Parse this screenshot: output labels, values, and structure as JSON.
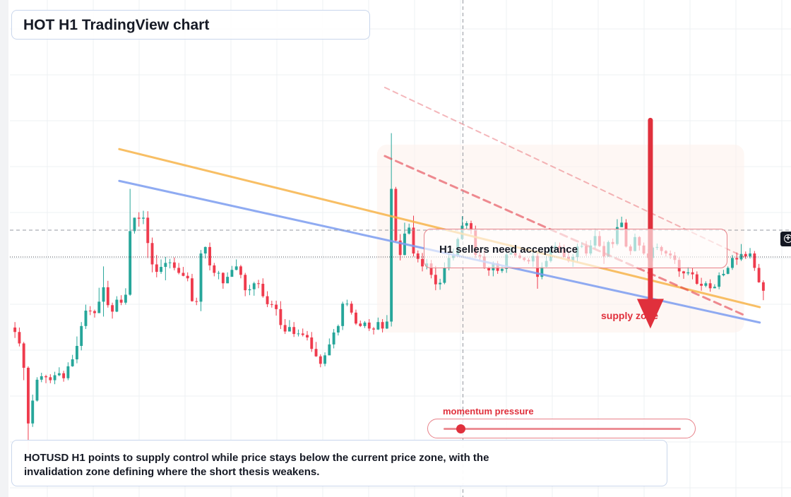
{
  "title": "HOT H1 TradingView chart",
  "callout": "H1 sellers need acceptance",
  "supply_label": "supply zone",
  "momentum": {
    "label": "momentum pressure",
    "level": 0.07
  },
  "note": "HOTUSD H1 points to supply control while price stays below the current price zone, with the invalidation zone defining where the short thesis weakens.",
  "colors": {
    "up": "#26a69a",
    "down": "#ef3b4d",
    "trend_orange": "#f7b44a",
    "trend_blue": "#7b9cf0",
    "resistance": "#e0303c",
    "arrow": "#e0303c"
  },
  "icons": {
    "crosshair": "crosshair-icon"
  },
  "chart_data": {
    "type": "candlestick",
    "y_scale": "relative price (0 = bottom, 100 = top)",
    "ylim": [
      0,
      100
    ],
    "grid": true,
    "candles": [
      [
        34.1,
        33.2,
        35.2,
        32.0
      ],
      [
        33.2,
        30.9,
        34.1,
        30.3
      ],
      [
        30.9,
        26.0,
        31.2,
        23.5
      ],
      [
        26.0,
        14.8,
        26.3,
        4.9
      ],
      [
        14.8,
        19.4,
        20.6,
        14.1
      ],
      [
        19.4,
        23.6,
        24.1,
        19.2
      ],
      [
        23.6,
        24.3,
        25.0,
        23.1
      ],
      [
        24.3,
        24.1,
        24.6,
        22.9
      ],
      [
        24.1,
        23.5,
        24.7,
        22.9
      ],
      [
        23.5,
        24.5,
        25.2,
        22.7
      ],
      [
        24.5,
        24.9,
        26.1,
        24.3
      ],
      [
        24.9,
        23.9,
        25.4,
        23.2
      ],
      [
        23.9,
        26.3,
        27.1,
        23.5
      ],
      [
        26.3,
        27.7,
        28.6,
        26.2
      ],
      [
        27.7,
        30.4,
        32.3,
        26.9
      ],
      [
        30.4,
        34.4,
        35.2,
        29.5
      ],
      [
        34.4,
        37.5,
        38.7,
        33.8
      ],
      [
        37.5,
        37.4,
        38.4,
        36.6
      ],
      [
        37.4,
        37.0,
        37.7,
        36.1
      ],
      [
        37.0,
        39.3,
        42.1,
        37.0
      ],
      [
        39.3,
        42.2,
        46.4,
        36.3
      ],
      [
        42.2,
        38.6,
        43.5,
        38.1
      ],
      [
        38.6,
        37.3,
        39.1,
        35.9
      ],
      [
        37.3,
        39.7,
        40.4,
        37.2
      ],
      [
        39.7,
        39.1,
        40.6,
        38.6
      ],
      [
        39.1,
        40.7,
        42.0,
        38.7
      ],
      [
        40.7,
        53.5,
        62.0,
        40.5
      ],
      [
        53.5,
        56.2,
        56.2,
        53.0
      ],
      [
        56.2,
        56.0,
        57.3,
        54.4
      ],
      [
        56.0,
        56.2,
        57.6,
        54.9
      ],
      [
        56.2,
        51.1,
        57.5,
        48.1
      ],
      [
        51.1,
        46.8,
        52.2,
        45.2
      ],
      [
        46.8,
        45.3,
        48.7,
        44.2
      ],
      [
        45.3,
        46.3,
        47.8,
        44.9
      ],
      [
        46.3,
        47.1,
        48.3,
        43.6
      ],
      [
        47.1,
        47.2,
        47.9,
        46.0
      ],
      [
        47.2,
        46.1,
        48.2,
        45.6
      ],
      [
        46.1,
        45.1,
        47.1,
        44.8
      ],
      [
        45.1,
        44.5,
        46.3,
        44.4
      ],
      [
        44.5,
        44.0,
        45.2,
        43.4
      ],
      [
        44.0,
        39.4,
        44.9,
        39.3
      ],
      [
        39.4,
        39.3,
        40.1,
        38.6
      ],
      [
        39.3,
        49.0,
        49.7,
        37.4
      ],
      [
        49.0,
        50.3,
        50.4,
        48.0
      ],
      [
        50.3,
        46.6,
        51.2,
        45.6
      ],
      [
        46.6,
        45.1,
        47.1,
        44.4
      ],
      [
        45.1,
        45.1,
        45.5,
        43.8
      ],
      [
        45.1,
        43.0,
        45.2,
        41.9
      ],
      [
        43.0,
        44.3,
        45.2,
        43.0
      ],
      [
        44.3,
        45.7,
        46.5,
        44.4
      ],
      [
        45.7,
        46.4,
        47.8,
        45.6
      ],
      [
        46.4,
        44.7,
        46.7,
        44.0
      ],
      [
        44.7,
        41.6,
        45.1,
        40.4
      ],
      [
        41.6,
        41.8,
        42.7,
        40.6
      ],
      [
        41.8,
        43.0,
        43.3,
        40.5
      ],
      [
        43.0,
        42.9,
        43.7,
        42.0
      ],
      [
        42.9,
        40.4,
        44.0,
        40.1
      ],
      [
        40.4,
        38.8,
        41.4,
        38.2
      ],
      [
        38.8,
        38.7,
        39.5,
        38.1
      ],
      [
        38.7,
        37.8,
        39.5,
        36.5
      ],
      [
        37.8,
        34.6,
        39.4,
        33.8
      ],
      [
        34.6,
        33.3,
        35.8,
        32.8
      ],
      [
        33.3,
        34.2,
        35.6,
        33.5
      ],
      [
        34.2,
        32.8,
        35.2,
        32.2
      ],
      [
        32.8,
        32.9,
        33.7,
        32.3
      ],
      [
        32.9,
        32.6,
        33.9,
        32.3
      ],
      [
        32.6,
        32.1,
        33.4,
        31.5
      ],
      [
        32.1,
        29.8,
        33.2,
        29.2
      ],
      [
        29.8,
        28.3,
        31.2,
        28.2
      ],
      [
        28.3,
        26.8,
        28.7,
        26.1
      ],
      [
        26.8,
        28.5,
        29.1,
        26.3
      ],
      [
        28.5,
        30.7,
        31.9,
        28.6
      ],
      [
        30.7,
        33.1,
        33.8,
        29.9
      ],
      [
        33.1,
        34.4,
        34.7,
        32.5
      ],
      [
        34.4,
        38.9,
        39.3,
        33.6
      ],
      [
        38.9,
        38.9,
        39.7,
        38.4
      ],
      [
        38.9,
        37.1,
        39.4,
        36.7
      ],
      [
        37.1,
        34.9,
        37.7,
        34.6
      ],
      [
        34.9,
        34.4,
        35.5,
        34.2
      ],
      [
        34.4,
        35.1,
        35.4,
        34.0
      ],
      [
        35.1,
        33.9,
        35.8,
        33.4
      ],
      [
        33.9,
        33.7,
        34.2,
        32.7
      ],
      [
        33.7,
        35.2,
        36.1,
        33.6
      ],
      [
        35.2,
        33.9,
        35.8,
        33.1
      ],
      [
        33.9,
        35.3,
        36.6,
        33.8
      ],
      [
        35.3,
        62.0,
        73.2,
        34.3
      ],
      [
        62.0,
        51.6,
        62.4,
        51.3
      ],
      [
        51.6,
        48.7,
        52.9,
        47.6
      ],
      [
        48.7,
        53.0,
        55.2,
        48.6
      ],
      [
        53.0,
        54.2,
        55.0,
        52.8
      ],
      [
        54.2,
        49.0,
        56.6,
        48.4
      ],
      [
        49.0,
        47.9,
        49.6,
        47.2
      ],
      [
        47.9,
        46.4,
        49.1,
        45.4
      ],
      [
        46.4,
        47.0,
        47.9,
        45.8
      ],
      [
        47.0,
        44.7,
        47.7,
        44.0
      ],
      [
        44.7,
        42.8,
        46.5,
        41.6
      ],
      [
        42.8,
        43.1,
        43.9,
        41.7
      ],
      [
        43.1,
        46.1,
        47.2,
        42.8
      ],
      [
        46.1,
        48.1,
        49.3,
        45.6
      ],
      [
        48.1,
        48.6,
        50.0,
        47.6
      ],
      [
        48.6,
        51.9,
        52.2,
        48.5
      ],
      [
        51.9,
        54.6,
        56.5,
        51.7
      ],
      [
        54.6,
        55.1,
        55.5,
        53.9
      ],
      [
        55.1,
        53.7,
        55.6,
        52.9
      ],
      [
        53.7,
        48.7,
        54.6,
        48.1
      ],
      [
        48.7,
        48.4,
        49.4,
        47.7
      ],
      [
        48.4,
        46.2,
        49.7,
        45.9
      ],
      [
        46.2,
        45.6,
        46.4,
        44.5
      ],
      [
        45.6,
        47.0,
        47.4,
        44.4
      ],
      [
        47.0,
        45.5,
        47.5,
        44.9
      ],
      [
        45.5,
        45.9,
        46.5,
        45.1
      ],
      [
        45.9,
        48.8,
        49.4,
        45.1
      ],
      [
        48.8,
        49.1,
        50.8,
        48.7
      ],
      [
        49.1,
        48.6,
        49.5,
        48.2
      ],
      [
        48.6,
        48.1,
        49.1,
        47.9
      ],
      [
        48.1,
        47.7,
        48.3,
        47.4
      ],
      [
        47.7,
        47.4,
        48.1,
        46.9
      ],
      [
        47.4,
        48.5,
        49.2,
        46.3
      ],
      [
        48.5,
        44.3,
        49.0,
        41.9
      ],
      [
        44.3,
        46.3,
        47.2,
        43.8
      ],
      [
        46.3,
        47.5,
        48.5,
        46.2
      ],
      [
        47.5,
        49.9,
        50.3,
        47.2
      ],
      [
        49.9,
        50.5,
        51.3,
        49.3
      ],
      [
        50.5,
        49.9,
        51.2,
        49.1
      ],
      [
        49.9,
        48.3,
        50.8,
        48.2
      ],
      [
        48.3,
        47.5,
        49.6,
        47.2
      ],
      [
        47.5,
        48.3,
        48.9,
        46.3
      ],
      [
        48.3,
        50.4,
        51.0,
        47.2
      ],
      [
        50.4,
        50.5,
        51.3,
        50.1
      ],
      [
        50.5,
        49.0,
        51.5,
        48.5
      ],
      [
        49.0,
        50.6,
        51.7,
        48.6
      ],
      [
        50.6,
        52.5,
        54.0,
        50.0
      ],
      [
        52.5,
        50.5,
        53.5,
        50.3
      ],
      [
        50.5,
        48.4,
        51.4,
        46.9
      ],
      [
        48.4,
        51.3,
        51.6,
        48.3
      ],
      [
        51.3,
        50.9,
        52.0,
        50.1
      ],
      [
        50.9,
        54.3,
        55.9,
        50.6
      ],
      [
        54.3,
        55.2,
        56.4,
        54.3
      ],
      [
        55.2,
        50.4,
        55.9,
        50.2
      ],
      [
        50.4,
        49.5,
        50.8,
        48.7
      ],
      [
        49.5,
        52.3,
        53.0,
        49.4
      ],
      [
        52.3,
        50.6,
        52.5,
        49.6
      ],
      [
        50.6,
        49.0,
        51.2,
        48.7
      ],
      [
        49.0,
        48.1,
        49.9,
        47.6
      ],
      [
        48.1,
        50.2,
        50.6,
        47.4
      ],
      [
        50.2,
        50.3,
        51.0,
        49.7
      ],
      [
        50.3,
        49.5,
        50.6,
        48.7
      ],
      [
        49.5,
        49.0,
        49.7,
        48.4
      ],
      [
        49.0,
        48.6,
        49.6,
        47.9
      ],
      [
        48.6,
        47.7,
        49.3,
        46.9
      ],
      [
        47.7,
        45.4,
        48.2,
        44.3
      ],
      [
        45.4,
        45.0,
        45.5,
        43.9
      ],
      [
        45.0,
        45.2,
        46.3,
        44.6
      ],
      [
        45.2,
        44.8,
        46.1,
        43.8
      ],
      [
        44.8,
        42.9,
        45.4,
        42.7
      ],
      [
        42.9,
        42.5,
        44.1,
        41.5
      ],
      [
        42.5,
        43.0,
        43.4,
        42.2
      ],
      [
        43.0,
        42.0,
        43.8,
        41.3
      ],
      [
        42.0,
        42.3,
        42.8,
        42.0
      ],
      [
        42.3,
        44.6,
        45.2,
        41.8
      ],
      [
        44.6,
        44.9,
        45.7,
        44.4
      ],
      [
        44.9,
        46.1,
        46.4,
        44.8
      ],
      [
        46.1,
        48.1,
        48.7,
        45.7
      ],
      [
        48.1,
        47.8,
        49.2,
        46.7
      ],
      [
        47.8,
        48.9,
        50.9,
        47.5
      ],
      [
        48.9,
        48.4,
        49.4,
        47.9
      ],
      [
        48.4,
        49.0,
        50.1,
        48.0
      ],
      [
        49.0,
        46.1,
        49.5,
        45.5
      ],
      [
        46.1,
        43.2,
        46.9,
        43.1
      ],
      [
        43.2,
        41.5,
        43.6,
        39.6
      ]
    ],
    "trendlines": [
      {
        "name": "orange trendline",
        "from": [
          0.14,
          70.0
        ],
        "to": [
          0.96,
          38.2
        ]
      },
      {
        "name": "blue trendline",
        "from": [
          0.14,
          63.6
        ],
        "to": [
          0.96,
          35.1
        ]
      },
      {
        "name": "dashed resistance",
        "from": [
          0.48,
          68.6
        ],
        "to": [
          0.94,
          36.6
        ]
      },
      {
        "name": "faint dashed resistance",
        "from": [
          0.48,
          82.4
        ],
        "to": [
          0.94,
          48.3
        ]
      }
    ],
    "current_price_line": 48.3,
    "crosshair": {
      "x": 0.58,
      "y": 53.7
    },
    "zones": [
      {
        "name": "supply zone",
        "from_x": 0.47,
        "to_x": 0.94,
        "y_low": 33.1,
        "y_high": 70.9
      }
    ],
    "bearish_arrow": {
      "x": 0.82,
      "from_y": 75.8,
      "to_y": 33.9
    }
  }
}
